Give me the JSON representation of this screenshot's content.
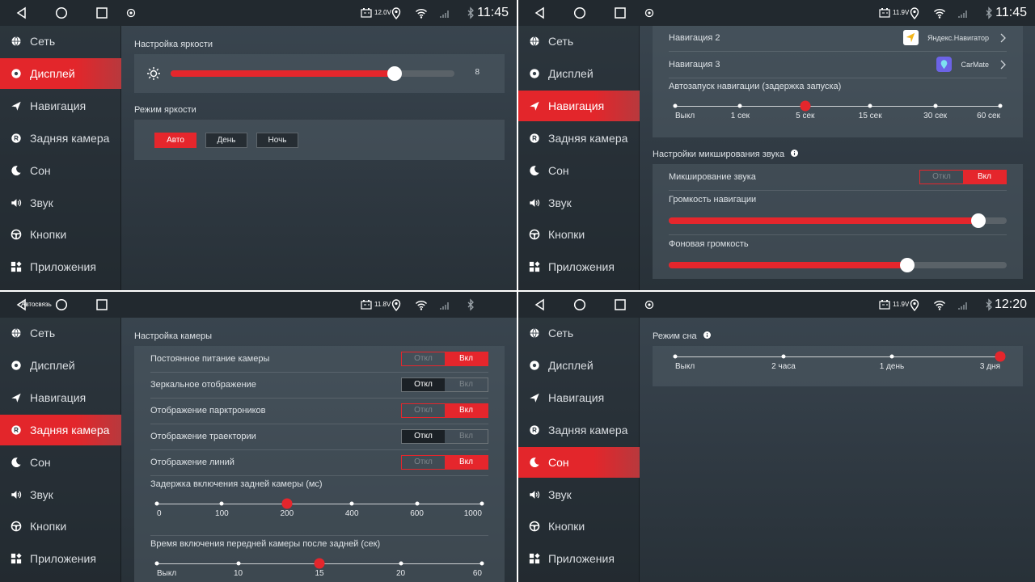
{
  "sidebar": {
    "items": [
      "Сеть",
      "Дисплей",
      "Навигация",
      "Задняя камера",
      "Сон",
      "Звук",
      "Кнопки",
      "Приложения"
    ]
  },
  "panels": [
    {
      "status_bar": {
        "voltage": "12.0V",
        "time": "11:45"
      },
      "active_item": 1,
      "sections": [
        {
          "title": "Настройка яркости",
          "rows": [
            {
              "type": "slider",
              "value": 8
            }
          ]
        },
        {
          "title": "Режим яркости",
          "rows": [
            {
              "type": "buttons",
              "options": [
                "Авто",
                "День",
                "Ночь"
              ],
              "selected": 0
            }
          ]
        }
      ]
    },
    {
      "status_bar": {
        "voltage": "11.9V",
        "time": "11:45"
      },
      "active_item": 2,
      "sections": [
        {
          "rows": [
            {
              "type": "link",
              "label": "Навигация 2",
              "app": "Яндекс.Навигатор"
            },
            {
              "type": "link",
              "label": "Навигация 3",
              "app": "CarMate"
            },
            {
              "type": "stepper",
              "label": "Автозапуск навигации (задержка запуска)",
              "options": [
                "Выкл",
                "1 сек",
                "5 сек",
                "15 сек",
                "30 сек",
                "60 сек"
              ],
              "selected": 2
            }
          ]
        },
        {
          "title": "Настройки микширования звука",
          "info": true,
          "rows": [
            {
              "type": "toggle",
              "label": "Микширование звука",
              "options": [
                "Откл",
                "Вкл"
              ],
              "selected": 1
            },
            {
              "type": "volume",
              "label": "Громкость навигации"
            },
            {
              "type": "volume",
              "label": "Фоновая громкость"
            }
          ]
        }
      ]
    },
    {
      "status_bar": {
        "overlay": "Автосвязь",
        "voltage": "11.8V"
      },
      "active_item": 3,
      "sections": [
        {
          "title": "Настройка камеры",
          "rows": [
            {
              "type": "toggle",
              "label": "Постоянное питание камеры",
              "options": [
                "Откл",
                "Вкл"
              ],
              "selected": 1
            },
            {
              "type": "toggle",
              "label": "Зеркальное отображение",
              "options": [
                "Откл",
                "Вкл"
              ],
              "selected": 0
            },
            {
              "type": "toggle",
              "label": "Отображение парктроников",
              "options": [
                "Откл",
                "Вкл"
              ],
              "selected": 1
            },
            {
              "type": "toggle",
              "label": "Отображение траектории",
              "options": [
                "Откл",
                "Вкл"
              ],
              "selected": 0
            },
            {
              "type": "toggle",
              "label": "Отображение линий",
              "options": [
                "Откл",
                "Вкл"
              ],
              "selected": 1
            },
            {
              "type": "stepper",
              "label": "Задержка включения задней камеры (мс)",
              "options": [
                "0",
                "100",
                "200",
                "400",
                "600",
                "1000"
              ],
              "selected": 2
            },
            {
              "type": "stepper",
              "label": "Время включения передней камеры после задней (сек)",
              "options": [
                "Выкл",
                "10",
                "15",
                "20",
                "60"
              ],
              "selected": 2
            }
          ]
        }
      ]
    },
    {
      "status_bar": {
        "voltage": "11.9V",
        "time": "12:20"
      },
      "active_item": 4,
      "sections": [
        {
          "title": "Режим сна",
          "info": true,
          "rows": [
            {
              "type": "stepper",
              "options": [
                "Выкл",
                "2 часа",
                "1 день",
                "3 дня"
              ],
              "selected": 3
            }
          ]
        }
      ]
    }
  ]
}
